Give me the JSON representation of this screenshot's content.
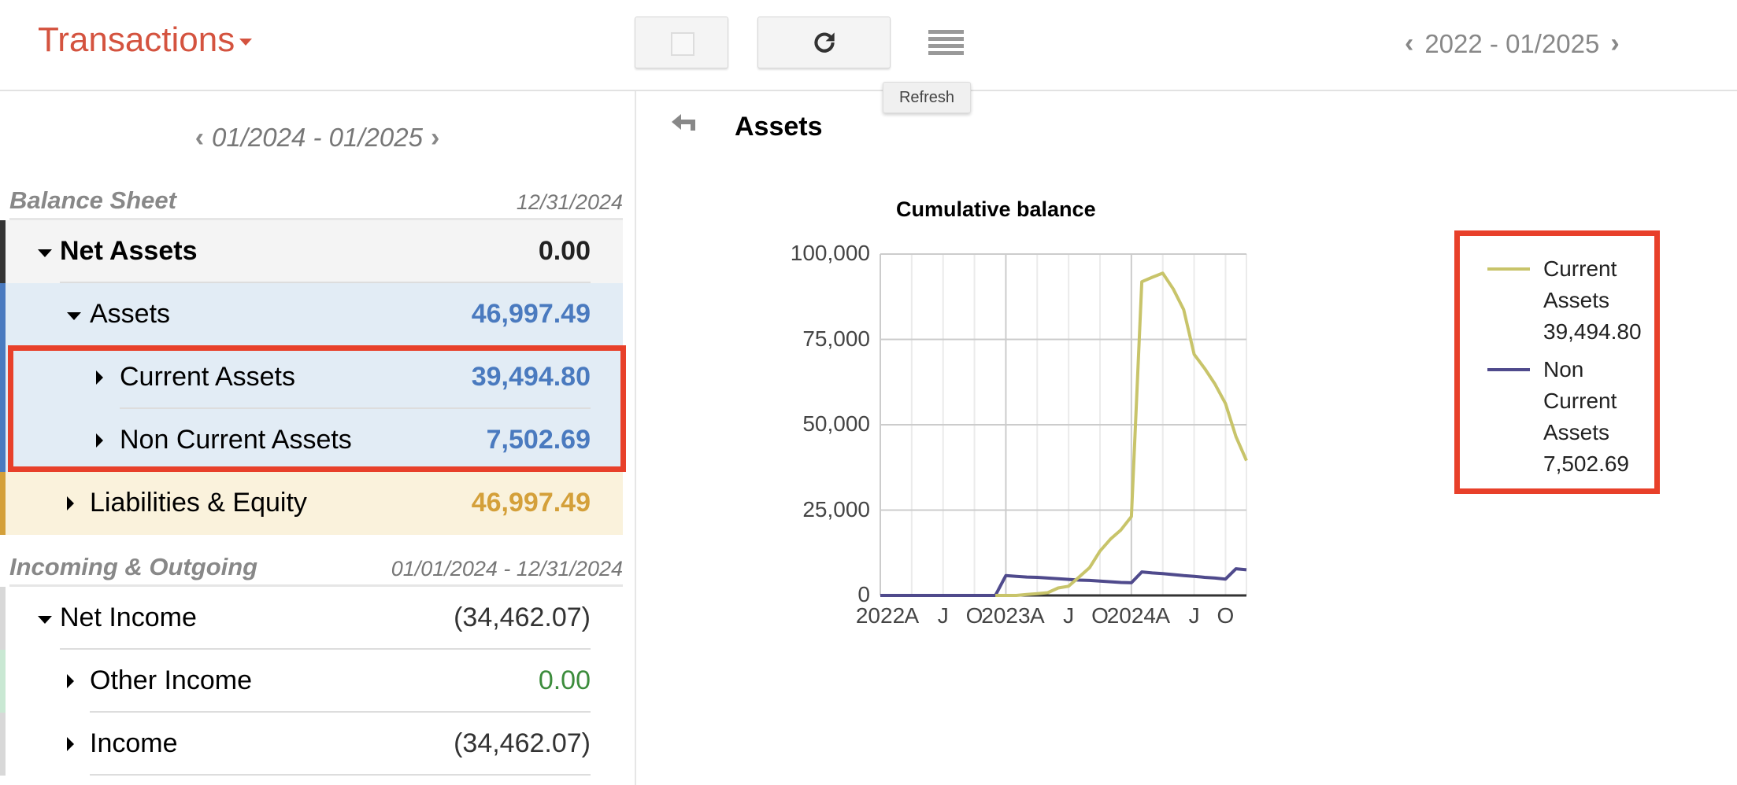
{
  "header": {
    "title": "Transactions",
    "refresh_tooltip": "Refresh",
    "range": "2022 - 01/2025"
  },
  "left": {
    "range": "01/2024 - 01/2025",
    "balance_sheet": {
      "title": "Balance Sheet",
      "date": "12/31/2024",
      "rows": [
        {
          "label": "Net Assets",
          "value": "0.00"
        },
        {
          "label": "Assets",
          "value": "46,997.49"
        },
        {
          "label": "Current Assets",
          "value": "39,494.80"
        },
        {
          "label": "Non Current Assets",
          "value": "7,502.69"
        },
        {
          "label": "Liabilities & Equity",
          "value": "46,997.49"
        }
      ]
    },
    "income": {
      "title": "Incoming & Outgoing",
      "date": "01/01/2024 - 12/31/2024",
      "rows": [
        {
          "label": "Net Income",
          "value": "(34,462.07)"
        },
        {
          "label": "Other Income",
          "value": "0.00"
        },
        {
          "label": "Income",
          "value": "(34,462.07)"
        }
      ]
    }
  },
  "panel": {
    "title": "Assets"
  },
  "colors": {
    "accent": "#d4533f",
    "assets_blue": "#4a7abf",
    "liabilities_gold": "#d4a03a",
    "income_green": "#3c8c3c",
    "highlight_red": "#e8402a"
  },
  "chart_data": {
    "type": "line",
    "title": "Cumulative balance",
    "x_start": "2022-01",
    "x_interval": "month",
    "x_tick_labels": [
      "2022",
      "A",
      "J",
      "O",
      "2023",
      "A",
      "J",
      "O",
      "2024",
      "A",
      "J",
      "O"
    ],
    "ylim": [
      0,
      100000
    ],
    "y_ticks": [
      "0",
      "25,000",
      "50,000",
      "75,000",
      "100,000"
    ],
    "y_tick_values": [
      0,
      25000,
      50000,
      75000,
      100000
    ],
    "grid": true,
    "legend_position": "right",
    "series": [
      {
        "name": "Current Assets",
        "value_label": "39,494.80",
        "color": "#c8c46a",
        "values": [
          null,
          null,
          null,
          null,
          null,
          null,
          null,
          null,
          null,
          null,
          null,
          0,
          0,
          0,
          300,
          500,
          800,
          2200,
          2700,
          5400,
          8100,
          13000,
          16500,
          19200,
          23100,
          91900,
          93200,
          94400,
          89800,
          83700,
          70600,
          66500,
          61900,
          56200,
          46500,
          39494.8
        ]
      },
      {
        "name": "Non Current Assets",
        "value_label": "7,502.69",
        "color": "#4f4a8c",
        "values": [
          0,
          0,
          0,
          0,
          0,
          0,
          0,
          0,
          0,
          0,
          0,
          0,
          5800,
          5600,
          5400,
          5300,
          5100,
          4900,
          4700,
          4500,
          4400,
          4200,
          4000,
          3800,
          3700,
          6900,
          6600,
          6400,
          6100,
          5800,
          5600,
          5300,
          5100,
          4800,
          7800,
          7502.69
        ]
      }
    ]
  }
}
